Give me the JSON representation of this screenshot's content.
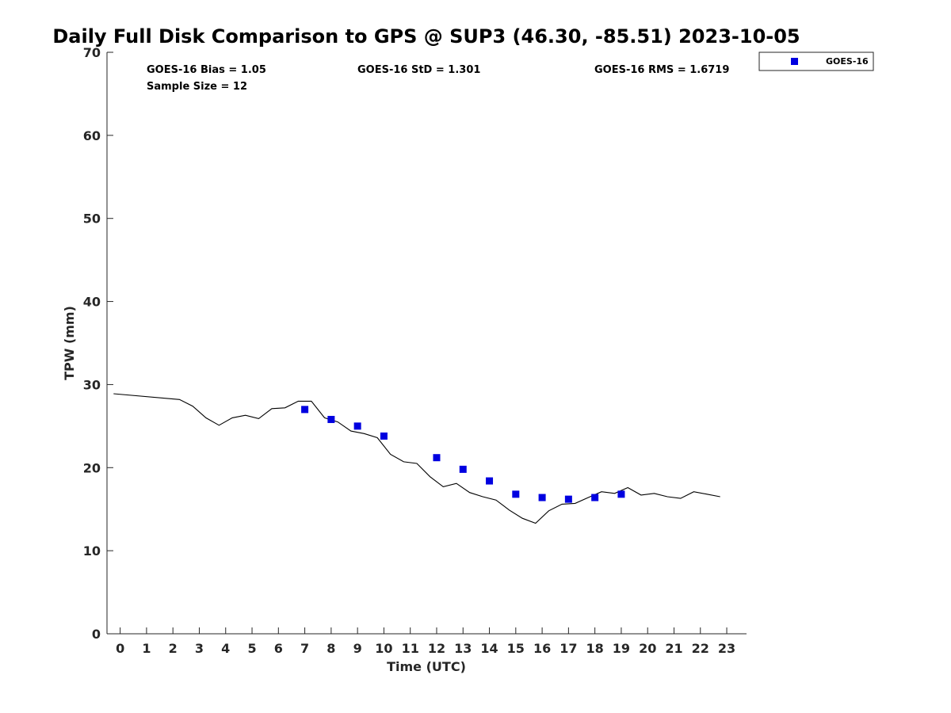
{
  "chart_data": {
    "type": "scatter",
    "title": "Daily Full Disk Comparison to GPS @ SUP3 (46.30, -85.51) 2023-10-05",
    "xlabel": "Time (UTC)",
    "ylabel": "TPW (mm)",
    "xlim": [
      -0.5,
      23.75
    ],
    "ylim": [
      0,
      70
    ],
    "xticks": [
      0,
      1,
      2,
      3,
      4,
      5,
      6,
      7,
      8,
      9,
      10,
      11,
      12,
      13,
      14,
      15,
      16,
      17,
      18,
      19,
      20,
      21,
      22,
      23
    ],
    "yticks": [
      0,
      10,
      20,
      30,
      40,
      50,
      60,
      70
    ],
    "grid": false,
    "legend": {
      "placement": "top-right",
      "entries": [
        "GOES-16"
      ]
    },
    "stats": {
      "bias": "GOES-16 Bias = 1.05",
      "sample": "Sample Size = 12",
      "std": "GOES-16 StD = 1.301",
      "rms": "GOES-16 RMS = 1.6719"
    },
    "series": [
      {
        "name": "GOES-16",
        "kind": "scatter",
        "color": "#0000e0",
        "x": [
          7,
          8,
          9,
          10,
          12,
          13,
          14,
          15,
          16,
          17,
          18,
          19
        ],
        "y": [
          27.0,
          25.8,
          25.0,
          23.8,
          21.2,
          19.8,
          18.4,
          16.8,
          16.4,
          16.2,
          16.4,
          16.8
        ]
      },
      {
        "kind": "line",
        "color": "#000000",
        "x": [
          -0.25,
          2.25,
          2.75,
          3.25,
          3.75,
          4.25,
          4.75,
          5.25,
          5.75,
          6.25,
          6.75,
          7.25,
          7.75,
          8.25,
          8.75,
          9.25,
          9.75,
          10.25,
          10.75,
          11.25,
          11.75,
          12.25,
          12.75,
          13.25,
          13.75,
          14.25,
          14.75,
          15.25,
          15.75,
          16.25,
          16.75,
          17.25,
          17.75,
          18.25,
          18.75,
          19.25,
          19.75,
          20.25,
          20.75,
          21.25,
          21.75,
          22.25,
          22.75
        ],
        "y": [
          28.9,
          28.2,
          27.4,
          26.0,
          25.1,
          26.0,
          26.3,
          25.9,
          27.1,
          27.2,
          28.0,
          28.0,
          26.0,
          25.5,
          24.4,
          24.1,
          23.6,
          21.6,
          20.7,
          20.5,
          18.9,
          17.7,
          18.1,
          17.0,
          16.5,
          16.1,
          14.9,
          13.9,
          13.3,
          14.8,
          15.6,
          15.7,
          16.4,
          17.1,
          16.9,
          17.6,
          16.7,
          16.9,
          16.5,
          16.3,
          17.1,
          16.8,
          16.5
        ]
      }
    ]
  }
}
